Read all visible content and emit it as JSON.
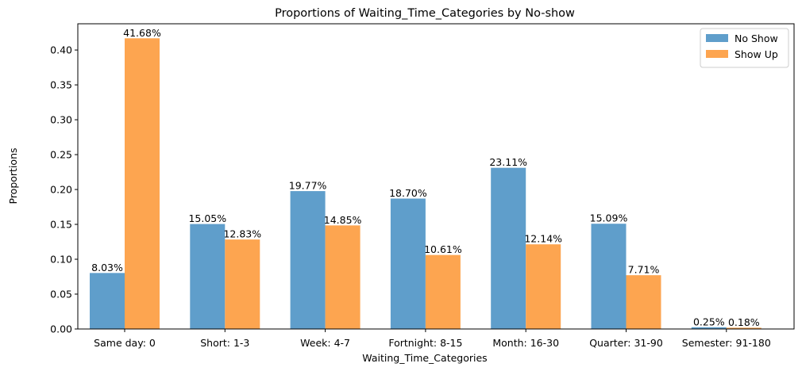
{
  "chart_data": {
    "type": "bar",
    "title": "Proportions of Waiting_Time_Categories by No-show",
    "xlabel": "Waiting_Time_Categories",
    "ylabel": "Proportions",
    "categories": [
      "Same day: 0",
      "Short: 1-3",
      "Week: 4-7",
      "Fortnight: 8-15",
      "Month: 16-30",
      "Quarter: 31-90",
      "Semester: 91-180"
    ],
    "series": [
      {
        "name": "No Show",
        "color": "#5f9ecb",
        "values": [
          0.0803,
          0.1505,
          0.1977,
          0.187,
          0.2311,
          0.1509,
          0.0025
        ],
        "labels": [
          "8.03%",
          "15.05%",
          "19.77%",
          "18.70%",
          "23.11%",
          "15.09%",
          "0.25%"
        ]
      },
      {
        "name": "Show Up",
        "color": "#fda550",
        "values": [
          0.4168,
          0.1283,
          0.1485,
          0.1061,
          0.1214,
          0.0771,
          0.0018
        ],
        "labels": [
          "41.68%",
          "12.83%",
          "14.85%",
          "10.61%",
          "12.14%",
          "7.71%",
          "0.18%"
        ]
      }
    ],
    "ylim": [
      0,
      0.4376
    ],
    "yticks": [
      "0.00",
      "0.05",
      "0.10",
      "0.15",
      "0.20",
      "0.25",
      "0.30",
      "0.35",
      "0.40"
    ],
    "legend_position": "top-right",
    "grid": false
  }
}
